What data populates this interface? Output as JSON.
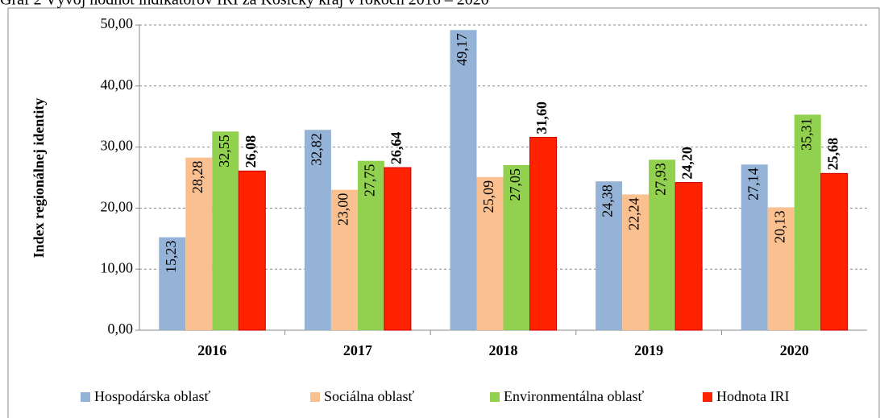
{
  "chart_data": {
    "type": "bar",
    "title": "Graf 2 Vývoj hodnôt indikátorov IRI za Košický kraj v rokoch 2016 – 2020",
    "y_label": "Index regionálnej identity",
    "categories": [
      "2016",
      "2017",
      "2018",
      "2019",
      "2020"
    ],
    "series": [
      {
        "name": "Hospodárska oblasť",
        "color": "#95b3d7",
        "values": [
          15.23,
          32.82,
          49.17,
          24.38,
          27.14
        ],
        "value_labels": [
          "15,23",
          "32,82",
          "49,17",
          "24,38",
          "27,14"
        ]
      },
      {
        "name": "Sociálna oblasť",
        "color": "#fac090",
        "values": [
          28.28,
          23.0,
          25.09,
          22.24,
          20.13
        ],
        "value_labels": [
          "28,28",
          "23,00",
          "25,09",
          "22,24",
          "20,13"
        ]
      },
      {
        "name": "Environmentálna oblasť",
        "color": "#92d050",
        "values": [
          32.55,
          27.75,
          27.05,
          27.93,
          35.31
        ],
        "value_labels": [
          "32,55",
          "27,75",
          "27,05",
          "27,93",
          "35,31"
        ]
      },
      {
        "name": "Hodnota IRI",
        "color": "#ff2200",
        "values": [
          26.08,
          26.64,
          31.6,
          24.2,
          25.68
        ],
        "value_labels": [
          "26,08",
          "26,64",
          "31,60",
          "24,20",
          "25,68"
        ]
      }
    ],
    "ylim": [
      0,
      50
    ],
    "yticks": [
      {
        "value": 0,
        "label": "0,00"
      },
      {
        "value": 10,
        "label": "10,00"
      },
      {
        "value": 20,
        "label": "20,00"
      },
      {
        "value": 30,
        "label": "30,00"
      },
      {
        "value": 40,
        "label": "40,00"
      },
      {
        "value": 50,
        "label": "50,00"
      }
    ],
    "grid": true,
    "legend": "bottom"
  }
}
